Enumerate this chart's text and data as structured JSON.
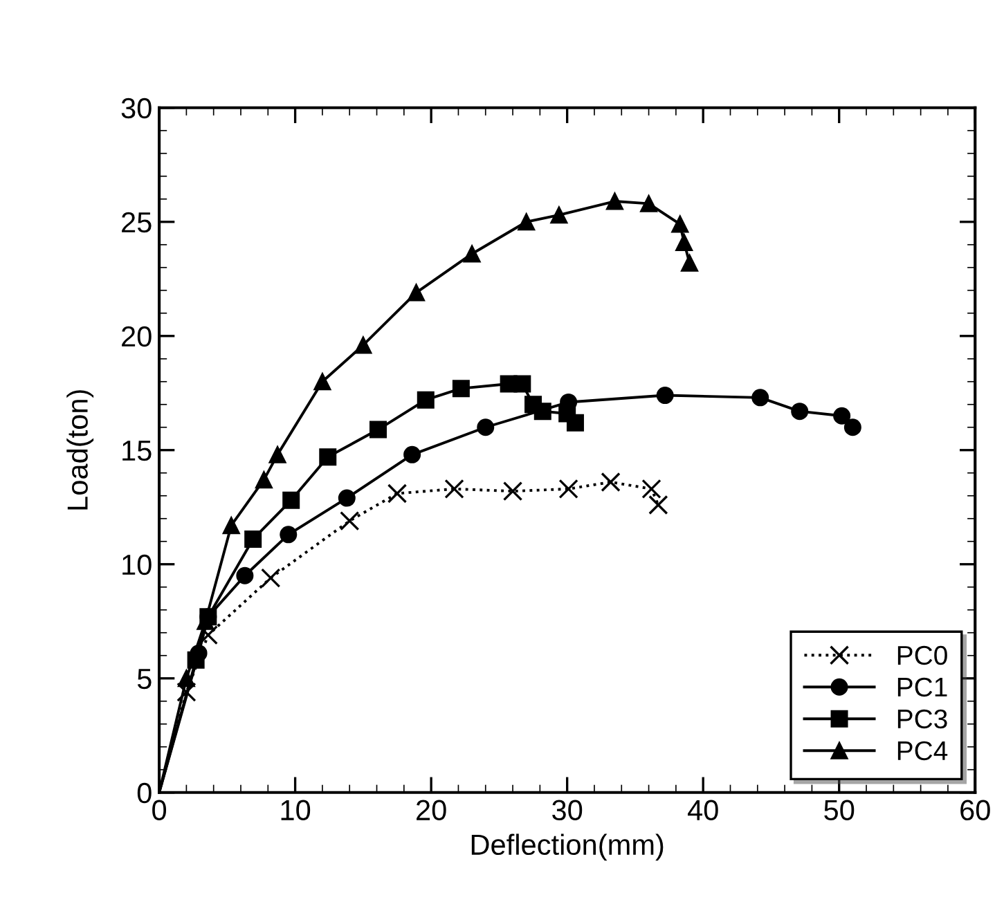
{
  "chart_data": {
    "type": "line",
    "xlabel": "Deflection(mm)",
    "ylabel": "Load(ton)",
    "xlim": [
      0,
      60
    ],
    "ylim": [
      0,
      30
    ],
    "xticks": [
      0,
      10,
      20,
      30,
      40,
      50,
      60
    ],
    "yticks": [
      0,
      5,
      10,
      15,
      20,
      25,
      30
    ],
    "grid": false,
    "legend": "bottom right",
    "series": [
      {
        "name": "PC0",
        "color": "#000000",
        "marker": "cross",
        "line_style": "dotted",
        "x": [
          0,
          2.0,
          3.6,
          8.2,
          14,
          17.5,
          21.7,
          26,
          30.1,
          33.2,
          36.2,
          36.7
        ],
        "values": [
          0,
          4.4,
          6.9,
          9.4,
          11.9,
          13.1,
          13.3,
          13.2,
          13.3,
          13.6,
          13.3,
          12.6
        ]
      },
      {
        "name": "PC1",
        "color": "#000000",
        "marker": "circle",
        "line_style": "solid",
        "x": [
          0,
          2.9,
          3.6,
          6.3,
          9.5,
          13.8,
          18.6,
          24,
          30.1,
          37.2,
          44.2,
          47.1,
          50.2,
          51
        ],
        "values": [
          0,
          6.1,
          7.7,
          9.5,
          11.3,
          12.9,
          14.8,
          16.0,
          17.1,
          17.4,
          17.3,
          16.7,
          16.5,
          16.0
        ]
      },
      {
        "name": "PC3",
        "color": "#000000",
        "marker": "square",
        "line_style": "solid",
        "x": [
          0,
          2.7,
          3.6,
          6.9,
          9.7,
          12.4,
          16.1,
          19.6,
          22.2,
          25.7,
          26.7,
          27.5,
          28.2,
          30,
          30.6
        ],
        "values": [
          0,
          5.8,
          7.7,
          11.1,
          12.8,
          14.7,
          15.9,
          17.2,
          17.7,
          17.9,
          17.9,
          17.0,
          16.7,
          16.6,
          16.2
        ]
      },
      {
        "name": "PC4",
        "color": "#000000",
        "marker": "triangle",
        "line_style": "solid",
        "x": [
          0,
          2,
          3.4,
          5.3,
          7.7,
          8.7,
          12,
          15,
          18.9,
          23,
          27,
          29.4,
          33.5,
          36,
          38.3,
          38.6,
          39
        ],
        "values": [
          0,
          5,
          7.5,
          11.7,
          13.7,
          14.8,
          18,
          19.6,
          21.9,
          23.6,
          25,
          25.3,
          25.9,
          25.8,
          24.9,
          24.1,
          23.2
        ]
      }
    ]
  }
}
